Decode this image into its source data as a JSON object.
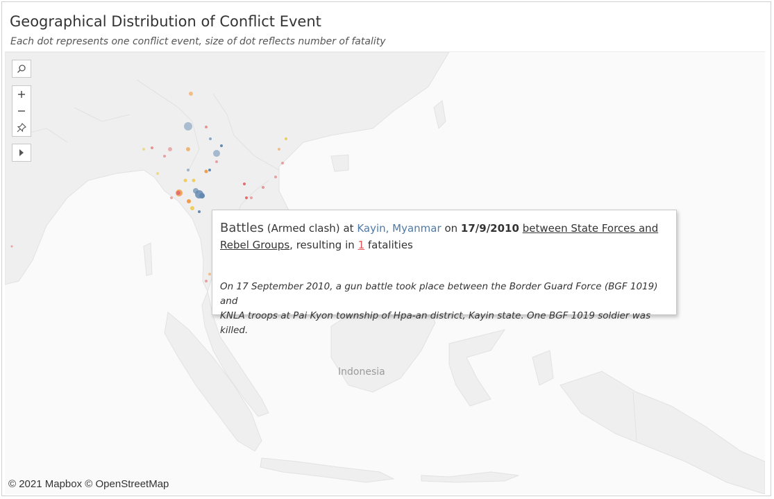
{
  "header": {
    "title": "Geographical Distribution of Conflict Event",
    "subtitle": "Each dot represents one conflict event, size of dot reflects number of fatality"
  },
  "map": {
    "attribution": "© 2021 Mapbox © OpenStreetMap",
    "country_label": "Indonesia",
    "controls": [
      "search-icon",
      "zoom-in-icon",
      "zoom-out-icon",
      "pin-icon",
      "expand-arrow-icon"
    ]
  },
  "tooltip": {
    "event_type": "Battles",
    "sub_event": "(Armed clash)",
    "at_word": "at",
    "location": "Kayin, Myanmar",
    "on_word": "on",
    "date": "17/9/2010",
    "actors": "between State Forces and Rebel Groups",
    "resulting_prefix": ", resulting in",
    "fatalities": "1",
    "fatalities_suffix": "fatalities",
    "notes_line1": "On 17 September 2010, a gun battle took place between the Border Guard Force (BGF 1019) and",
    "notes_line2": "KNLA troops at Pai Kyon township of Hpa-an district, Kayin state. One BGF 1019 soldier was killed."
  },
  "colors": {
    "land": "#efefef",
    "water": "#fafafa",
    "dot_blue": "#4e79a7",
    "dot_orange": "#f28e2b",
    "dot_red": "#e15759",
    "dot_yellow": "#edc948"
  }
}
